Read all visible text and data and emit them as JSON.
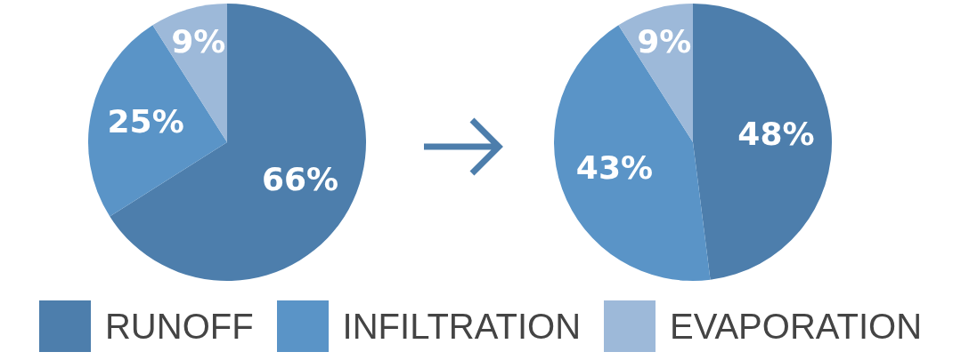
{
  "chart_data": [
    {
      "type": "pie",
      "categories": [
        "RUNOFF",
        "INFILTRATION",
        "EVAPORATION"
      ],
      "values": [
        66,
        25,
        9
      ],
      "colors": [
        "#4d7eac",
        "#5a94c7",
        "#9db9d9"
      ],
      "value_labels": [
        "66%",
        "25%",
        "9%"
      ],
      "legend": "bottom"
    },
    {
      "type": "pie",
      "categories": [
        null,
        null,
        null
      ],
      "values": [
        48,
        43,
        9
      ],
      "colors": [
        "#4d7eac",
        "#5a94c7",
        "#9db9d9"
      ],
      "value_labels": [
        "48%",
        "43%",
        "9%"
      ]
    }
  ]
}
